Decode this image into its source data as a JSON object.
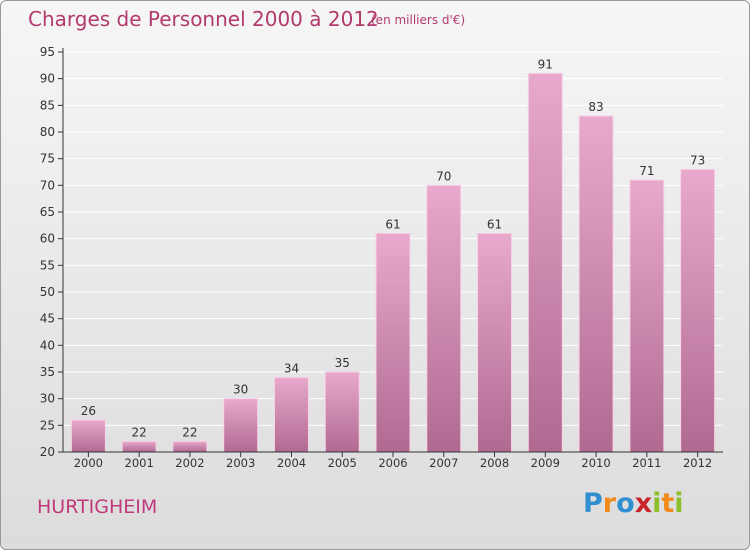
{
  "header": {
    "title": "Charges de Personnel 2000 à 2012",
    "subtitle": "(en milliers d'€)"
  },
  "footer": {
    "commune": "HURTIGHEIM",
    "logo_letters": [
      {
        "ch": "P",
        "color": "#2f8fd0"
      },
      {
        "ch": "r",
        "color": "#f08a1c"
      },
      {
        "ch": "o",
        "color": "#2f8fd0"
      },
      {
        "ch": "x",
        "color": "#c8242a"
      },
      {
        "ch": "i",
        "color": "#8cbf2a"
      },
      {
        "ch": "t",
        "color": "#f08a1c"
      },
      {
        "ch": "i",
        "color": "#8cbf2a"
      }
    ]
  },
  "colors": {
    "bar_light": "#e8a9cc",
    "bar_dark": "#b06a92",
    "bar_edge": "#f7d3e6",
    "axis": "#333333",
    "grid": "#ffffff",
    "text": "#333333"
  },
  "chart_data": {
    "type": "bar",
    "title": "Charges de Personnel 2000 à 2012",
    "subtitle": "(en milliers d'€)",
    "categories": [
      "2000",
      "2001",
      "2002",
      "2003",
      "2004",
      "2005",
      "2006",
      "2007",
      "2008",
      "2009",
      "2010",
      "2011",
      "2012"
    ],
    "values": [
      26,
      22,
      22,
      30,
      34,
      35,
      61,
      70,
      61,
      91,
      83,
      71,
      73
    ],
    "ylim": [
      20,
      95
    ],
    "yticks": [
      20,
      25,
      30,
      35,
      40,
      45,
      50,
      55,
      60,
      65,
      70,
      75,
      80,
      85,
      90,
      95
    ],
    "grid": true,
    "data_labels": true
  }
}
